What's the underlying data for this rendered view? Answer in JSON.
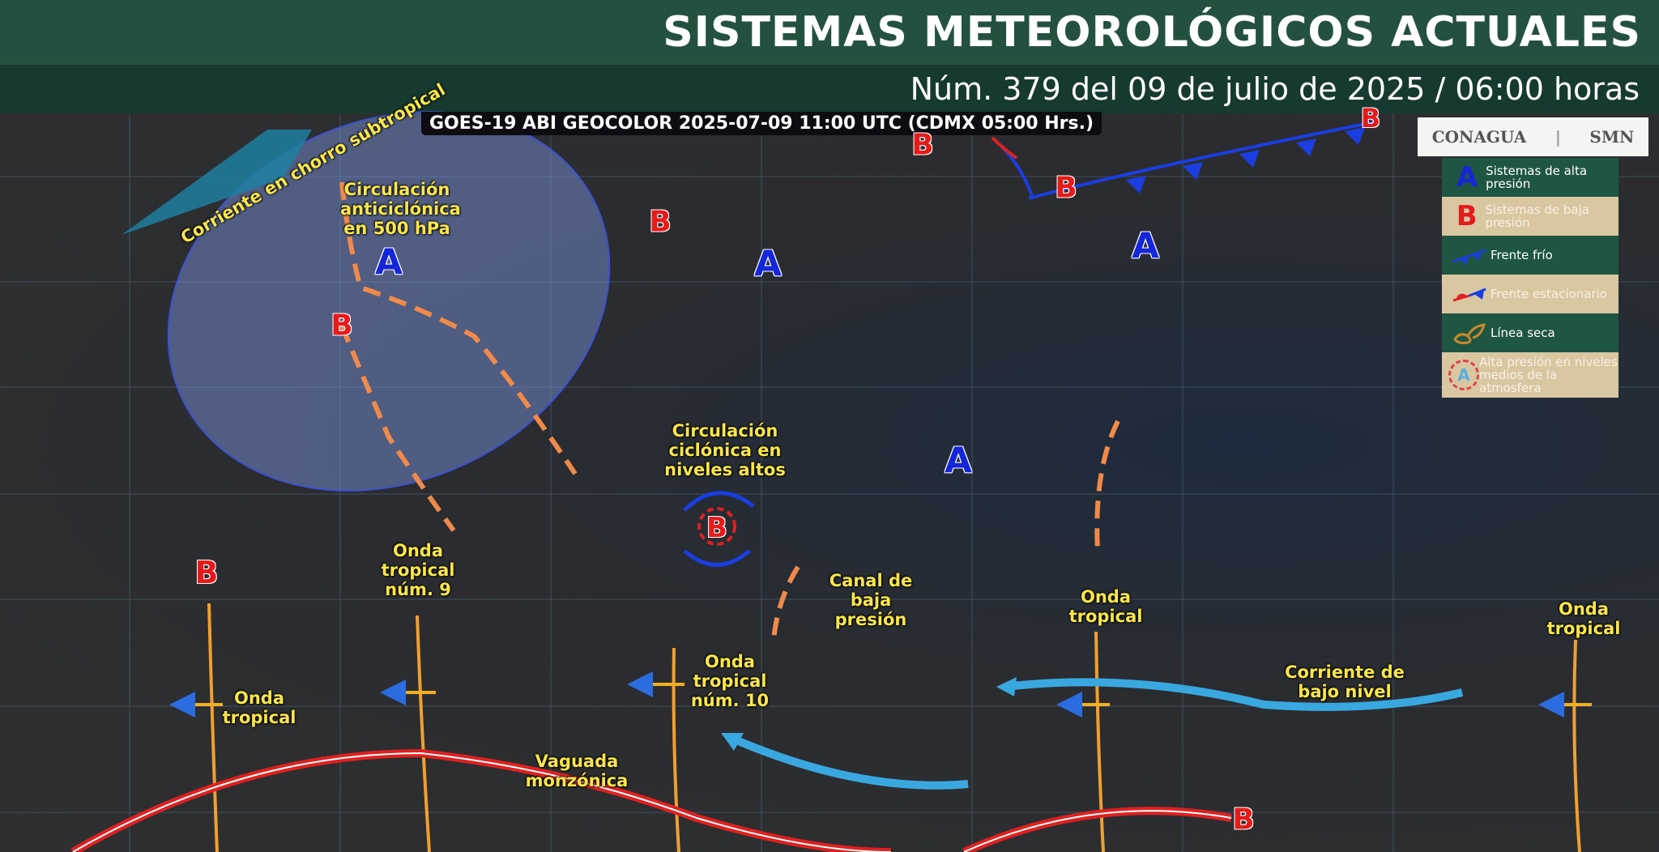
{
  "header": {
    "title": "SISTEMAS METEOROLÓGICOS ACTUALES",
    "subtitle": "Núm. 379 del 09 de julio de 2025 / 06:00 horas"
  },
  "satellite_caption": "GOES-19 ABI GEOCOLOR 2025-07-09 11:00 UTC (CDMX  05:00 Hrs.)",
  "logos": {
    "conagua": "CONAGUA",
    "smn": "SMN"
  },
  "legend": [
    {
      "icon": "high-pressure-A",
      "symbol": "A",
      "label": "Sistemas de alta presión"
    },
    {
      "icon": "low-pressure-B",
      "symbol": "B",
      "label": "Sistemas de baja presión"
    },
    {
      "icon": "cold-front",
      "label": "Frente frío"
    },
    {
      "icon": "stationary-front",
      "label": "Frente estacionario"
    },
    {
      "icon": "dry-line",
      "label": "Línea seca"
    },
    {
      "icon": "mid-level-high",
      "symbol": "A",
      "label": "Alta presión en niveles medios de la atmosfera"
    }
  ],
  "labels": {
    "jet": "Corriente en chorro subtropical",
    "anticyclonic": "Circulación anticiclónica en 500 hPa",
    "cyclonic": "Circulación ciclónica en niveles altos",
    "wave9": "Onda tropical núm. 9",
    "wave10": "Onda tropical núm. 10",
    "wave_w": "Onda tropical",
    "wave_c": "Onda tropical",
    "wave_e": "Onda tropical",
    "trough": "Canal de baja presión",
    "llj": "Corriente de bajo nivel",
    "monsoon": "Vaguada monzónica"
  },
  "symbols": {
    "A": "A",
    "B": "B"
  },
  "colors": {
    "header": "#24513f",
    "subheader": "#163a30",
    "high": "#1426d8",
    "low": "#e51b1b",
    "label": "#fbe64a",
    "wave": "#f0a030",
    "trough": "#f08a4a",
    "llj": "#3aa8e0"
  }
}
